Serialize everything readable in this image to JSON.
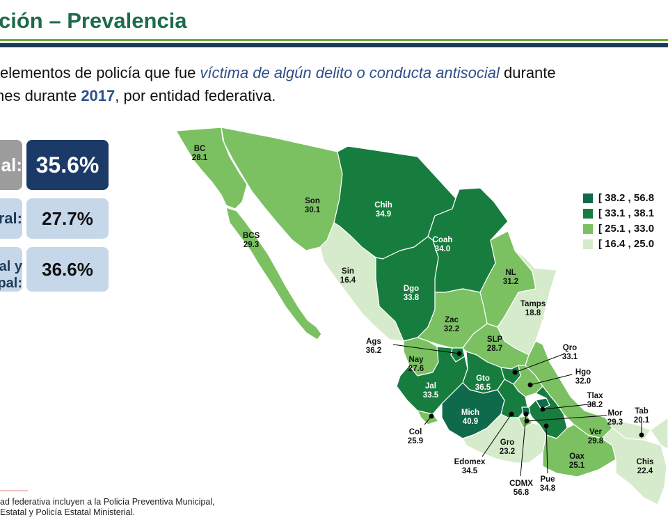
{
  "header": {
    "title": "ción – Prevalencia",
    "subtitle_line1_a": " elementos de policía que fue ",
    "subtitle_line1_em": "víctima de algún delito o conducta antisocial",
    "subtitle_line1_b": " durante",
    "subtitle_line2_a": "nes durante ",
    "subtitle_line2_year": "2017",
    "subtitle_line2_b": ", por entidad federativa."
  },
  "stats": [
    {
      "label": "al:",
      "value": "35.6%"
    },
    {
      "label": "ral:",
      "value": "27.7%"
    },
    {
      "label_l1": "al y",
      "label_l2": "pal:",
      "value": "36.6%"
    }
  ],
  "legend": [
    {
      "range": "[ 38.2 , 56.8",
      "color": "#0f6a4c"
    },
    {
      "range": "[ 33.1 , 38.1",
      "color": "#177d3f"
    },
    {
      "range": "[ 25.1 , 33.0",
      "color": "#7bc162"
    },
    {
      "range": "[ 16.4 , 25.0",
      "color": "#d6ebcc"
    }
  ],
  "states": [
    {
      "abbr": "BC",
      "value": "28.1"
    },
    {
      "abbr": "Son",
      "value": "30.1"
    },
    {
      "abbr": "Chih",
      "value": "34.9"
    },
    {
      "abbr": "Coah",
      "value": "34.0"
    },
    {
      "abbr": "BCS",
      "value": "29.3"
    },
    {
      "abbr": "Sin",
      "value": "16.4"
    },
    {
      "abbr": "NL",
      "value": "31.2"
    },
    {
      "abbr": "Dgo",
      "value": "33.8"
    },
    {
      "abbr": "Tamps",
      "value": "18.8"
    },
    {
      "abbr": "Zac",
      "value": "32.2"
    },
    {
      "abbr": "Ags",
      "value": "36.2"
    },
    {
      "abbr": "SLP",
      "value": "28.7"
    },
    {
      "abbr": "Nay",
      "value": "27.6"
    },
    {
      "abbr": "Qro",
      "value": "33.1"
    },
    {
      "abbr": "Hgo",
      "value": "32.0"
    },
    {
      "abbr": "Gto",
      "value": "36.5"
    },
    {
      "abbr": "Jal",
      "value": "33.5"
    },
    {
      "abbr": "Tlax",
      "value": "38.2"
    },
    {
      "abbr": "Mich",
      "value": "40.9"
    },
    {
      "abbr": "Mor",
      "value": "29.3"
    },
    {
      "abbr": "Tab",
      "value": "20.1"
    },
    {
      "abbr": "Col",
      "value": "25.9"
    },
    {
      "abbr": "Ver",
      "value": "29.8"
    },
    {
      "abbr": "Gro",
      "value": "23.2"
    },
    {
      "abbr": "Oax",
      "value": "25.1"
    },
    {
      "abbr": "Chis",
      "value": "22.4"
    },
    {
      "abbr": "Edomex",
      "value": "34.5"
    },
    {
      "abbr": "CDMX",
      "value": "56.8"
    },
    {
      "abbr": "Pue",
      "value": "34.8"
    }
  ],
  "footnote": {
    "line1": "ad federativa incluyen a la Policía Preventiva Municipal,",
    "line2": "Estatal y Policía Estatal Ministerial."
  }
}
